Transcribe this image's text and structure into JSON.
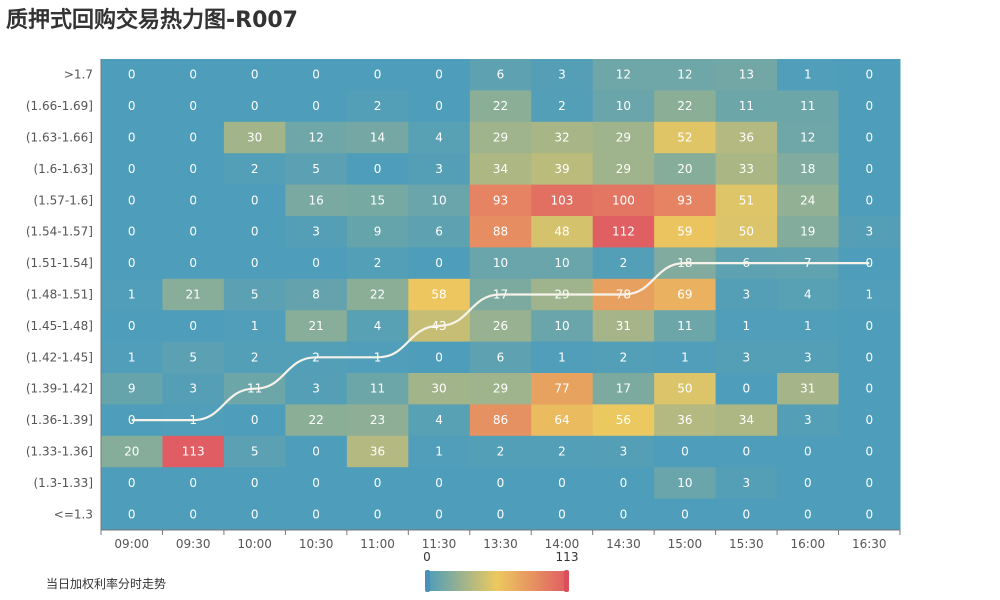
{
  "title": "质押式回购交易热力图-R007",
  "chart_data": {
    "type": "heatmap",
    "title": "质押式回购交易热力图-R007",
    "x_categories": [
      "09:00",
      "09:30",
      "10:00",
      "10:30",
      "11:00",
      "11:30",
      "13:30",
      "14:00",
      "14:30",
      "15:00",
      "15:30",
      "16:00",
      "16:30"
    ],
    "y_categories": [
      ">1.7",
      "(1.66-1.69]",
      "(1.63-1.66]",
      "(1.6-1.63]",
      "(1.57-1.6]",
      "(1.54-1.57]",
      "(1.51-1.54]",
      "(1.48-1.51]",
      "(1.45-1.48]",
      "(1.42-1.45]",
      "(1.39-1.42]",
      "(1.36-1.39]",
      "(1.33-1.36]",
      "(1.3-1.33]",
      "<=1.3"
    ],
    "values": [
      [
        0,
        0,
        0,
        0,
        0,
        0,
        6,
        3,
        12,
        12,
        13,
        1,
        0
      ],
      [
        0,
        0,
        0,
        0,
        2,
        0,
        22,
        2,
        10,
        22,
        11,
        11,
        0
      ],
      [
        0,
        0,
        30,
        12,
        14,
        4,
        29,
        32,
        29,
        52,
        36,
        12,
        0
      ],
      [
        0,
        0,
        2,
        5,
        0,
        3,
        34,
        39,
        29,
        20,
        33,
        18,
        0
      ],
      [
        0,
        0,
        0,
        16,
        15,
        10,
        93,
        103,
        100,
        93,
        51,
        24,
        0
      ],
      [
        0,
        0,
        0,
        3,
        9,
        6,
        88,
        48,
        112,
        59,
        50,
        19,
        3
      ],
      [
        0,
        0,
        0,
        0,
        2,
        0,
        10,
        10,
        2,
        18,
        6,
        7,
        0
      ],
      [
        1,
        21,
        5,
        8,
        22,
        58,
        17,
        29,
        78,
        69,
        3,
        4,
        1
      ],
      [
        0,
        0,
        1,
        21,
        4,
        43,
        26,
        10,
        31,
        11,
        1,
        1,
        0
      ],
      [
        1,
        5,
        2,
        2,
        1,
        0,
        6,
        1,
        2,
        1,
        3,
        3,
        0
      ],
      [
        9,
        3,
        11,
        3,
        11,
        30,
        29,
        77,
        17,
        50,
        0,
        31,
        0
      ],
      [
        0,
        1,
        0,
        22,
        23,
        4,
        86,
        64,
        56,
        36,
        34,
        3,
        0
      ],
      [
        20,
        113,
        5,
        0,
        36,
        1,
        2,
        2,
        3,
        0,
        0,
        0,
        0
      ],
      [
        0,
        0,
        0,
        0,
        0,
        0,
        0,
        0,
        0,
        10,
        3,
        0,
        0
      ],
      [
        0,
        0,
        0,
        0,
        0,
        0,
        0,
        0,
        0,
        0,
        0,
        0,
        0
      ]
    ],
    "visual_map": {
      "min": 0,
      "max": 113,
      "min_label": "0",
      "max_label": "113",
      "colors": [
        "#4d9dbb",
        "#edc95f",
        "#e05d63"
      ]
    },
    "trend_line": {
      "name": "当日加权利率分时走势",
      "color": "#f7f3ea",
      "y_bins": [
        "(1.36-1.39]",
        "(1.36-1.39]",
        "(1.39-1.42]",
        "(1.42-1.45]",
        "(1.42-1.45]",
        "(1.45-1.48]",
        "(1.48-1.51]",
        "(1.48-1.51]",
        "(1.48-1.51]",
        "(1.51-1.54]",
        "(1.51-1.54]",
        "(1.51-1.54]",
        "(1.51-1.54]"
      ]
    }
  }
}
